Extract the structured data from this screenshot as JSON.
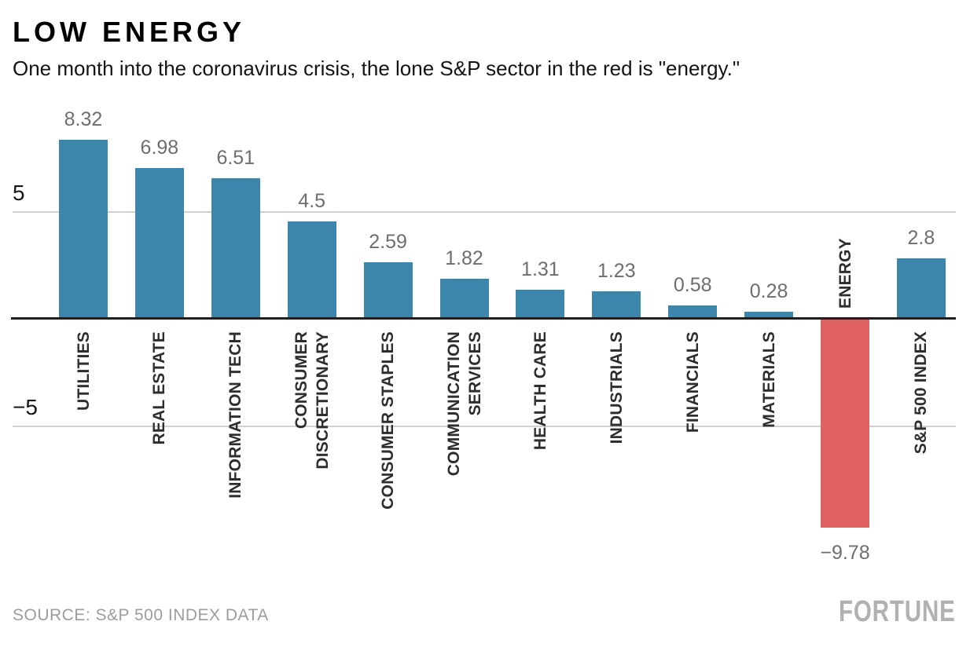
{
  "header": {
    "title": "LOW ENERGY",
    "subtitle": "One month into the coronavirus crisis, the lone S&P sector in the red is \"energy.\""
  },
  "axis": {
    "tick_top": "5",
    "tick_bottom": "−5"
  },
  "footer": {
    "source": "SOURCE: S&P 500 INDEX DATA",
    "brand": "FORTUNE"
  },
  "chart_data": {
    "type": "bar",
    "title": "LOW ENERGY",
    "subtitle": "One month into the coronavirus crisis, the lone S&P sector in the red is \"energy.\"",
    "categories": [
      "UTILITIES",
      "REAL ESTATE",
      "INFORMATION TECH",
      "CONSUMER DISCRETIONARY",
      "CONSUMER STAPLES",
      "COMMUNICATION SERVICES",
      "HEALTH CARE",
      "INDUSTRIALS",
      "FINANCIALS",
      "MATERIALS",
      "ENERGY",
      "S&P 500 INDEX"
    ],
    "category_lines": [
      [
        "UTILITIES"
      ],
      [
        "REAL ESTATE"
      ],
      [
        "INFORMATION TECH"
      ],
      [
        "CONSUMER",
        "DISCRETIONARY"
      ],
      [
        "CONSUMER STAPLES"
      ],
      [
        "COMMUNICATION",
        "SERVICES"
      ],
      [
        "HEALTH CARE"
      ],
      [
        "INDUSTRIALS"
      ],
      [
        "FINANCIALS"
      ],
      [
        "MATERIALS"
      ],
      [
        "ENERGY"
      ],
      [
        "S&P 500 INDEX"
      ]
    ],
    "values": [
      8.32,
      6.98,
      6.51,
      4.5,
      2.59,
      1.82,
      1.31,
      1.23,
      0.58,
      0.28,
      -9.78,
      2.8
    ],
    "value_labels": [
      "8.32",
      "6.98",
      "6.51",
      "4.5",
      "2.59",
      "1.82",
      "1.31",
      "1.23",
      "0.58",
      "0.28",
      "−9.78",
      "2.8"
    ],
    "bar_color": "#3d86ab",
    "negative_bar_color": "#df6161",
    "value_label_color": "#6e6e6e",
    "category_label_color": "#2e2e2e",
    "y_ticks": [
      5,
      -5
    ],
    "ylim": [
      -10.5,
      9
    ],
    "grid": "horizontal lines at 5 and -5, dark zero baseline",
    "legend": "none",
    "xlabel": "",
    "ylabel": ""
  }
}
